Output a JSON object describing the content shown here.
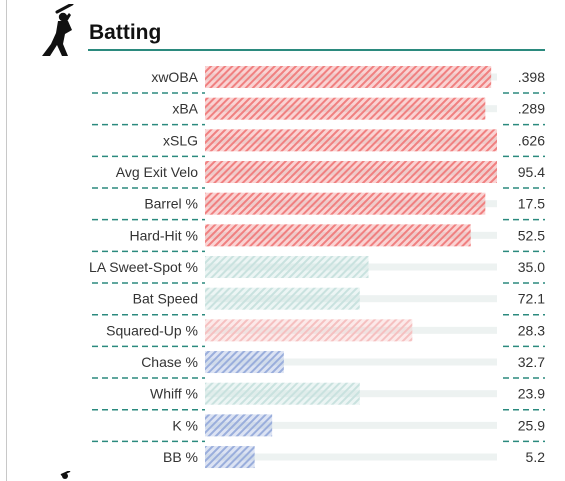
{
  "section": {
    "title": "Batting",
    "icon": "batter-icon",
    "accent_color": "#2b8a7e"
  },
  "chart_data": {
    "type": "bar",
    "orientation": "horizontal",
    "title": "Batting",
    "xlabel": "",
    "ylabel": "",
    "xlim": [
      0,
      100
    ],
    "grid": false,
    "legend": "none",
    "categories": [
      "xwOBA",
      "xBA",
      "xSLG",
      "Avg Exit Velo",
      "Barrel %",
      "Hard-Hit %",
      "LA Sweet-Spot %",
      "Bat Speed",
      "Squared-Up %",
      "Chase %",
      "Whiff %",
      "K %",
      "BB %"
    ],
    "values": [
      ".398",
      ".289",
      ".626",
      "95.4",
      "17.5",
      "52.5",
      "35.0",
      "72.1",
      "28.3",
      "32.7",
      "23.9",
      "25.9",
      "5.2"
    ],
    "percentiles": [
      98,
      96,
      100,
      100,
      96,
      91,
      56,
      53,
      71,
      27,
      53,
      23,
      17
    ],
    "colors": [
      "#f08080",
      "#f08080",
      "#f08080",
      "#f08080",
      "#f08080",
      "#f08080",
      "#c9e2df",
      "#c9e2df",
      "#f5c0c0",
      "#9aaedc",
      "#c9e2df",
      "#9aaedc",
      "#9aaedc"
    ],
    "track_color": "#edf2f1"
  }
}
